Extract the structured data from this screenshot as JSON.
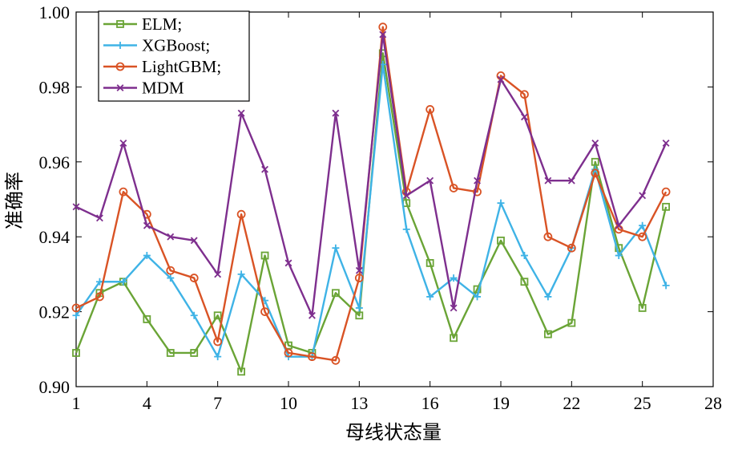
{
  "chart_data": {
    "type": "line",
    "title": "",
    "xlabel": "母线状态量",
    "ylabel": "准确率",
    "xlim": [
      1,
      28
    ],
    "ylim": [
      0.9,
      1.0
    ],
    "xticks": [
      "1",
      "4",
      "7",
      "10",
      "13",
      "16",
      "19",
      "22",
      "25",
      "28"
    ],
    "yticks": [
      "0.90",
      "0.92",
      "0.94",
      "0.96",
      "0.98",
      "1.00"
    ],
    "x": [
      1,
      2,
      3,
      4,
      5,
      6,
      7,
      8,
      9,
      10,
      11,
      12,
      13,
      14,
      15,
      16,
      17,
      18,
      19,
      20,
      21,
      22,
      23,
      24,
      25,
      26
    ],
    "legend_position": "top-left",
    "series": [
      {
        "name": "ELM;",
        "color": "#6aa436",
        "marker": "square",
        "values": [
          0.909,
          0.925,
          0.928,
          0.918,
          0.909,
          0.909,
          0.919,
          0.904,
          0.935,
          0.911,
          0.909,
          0.925,
          0.919,
          0.989,
          0.949,
          0.933,
          0.913,
          0.926,
          0.939,
          0.928,
          0.914,
          0.917,
          0.96,
          0.937,
          0.921,
          0.948
        ]
      },
      {
        "name": "XGBoost;",
        "color": "#3fb3e6",
        "marker": "plus",
        "values": [
          0.919,
          0.928,
          0.928,
          0.935,
          0.929,
          0.919,
          0.908,
          0.93,
          0.923,
          0.908,
          0.908,
          0.937,
          0.921,
          0.986,
          0.942,
          0.924,
          0.929,
          0.924,
          0.949,
          0.935,
          0.924,
          0.937,
          0.958,
          0.935,
          0.943,
          0.927
        ]
      },
      {
        "name": "LightGBM;",
        "color": "#d95325",
        "marker": "circle",
        "values": [
          0.921,
          0.924,
          0.952,
          0.946,
          0.931,
          0.929,
          0.912,
          0.946,
          0.92,
          0.909,
          0.908,
          0.907,
          0.929,
          0.996,
          0.952,
          0.974,
          0.953,
          0.952,
          0.983,
          0.978,
          0.94,
          0.937,
          0.957,
          0.942,
          0.94,
          0.952
        ]
      },
      {
        "name": "MDM",
        "color": "#7e2f8e",
        "marker": "x",
        "values": [
          0.948,
          0.945,
          0.965,
          0.943,
          0.94,
          0.939,
          0.93,
          0.973,
          0.958,
          0.933,
          0.919,
          0.973,
          0.931,
          0.994,
          0.951,
          0.955,
          0.921,
          0.955,
          0.982,
          0.972,
          0.955,
          0.955,
          0.965,
          0.943,
          0.951,
          0.965
        ]
      }
    ]
  }
}
